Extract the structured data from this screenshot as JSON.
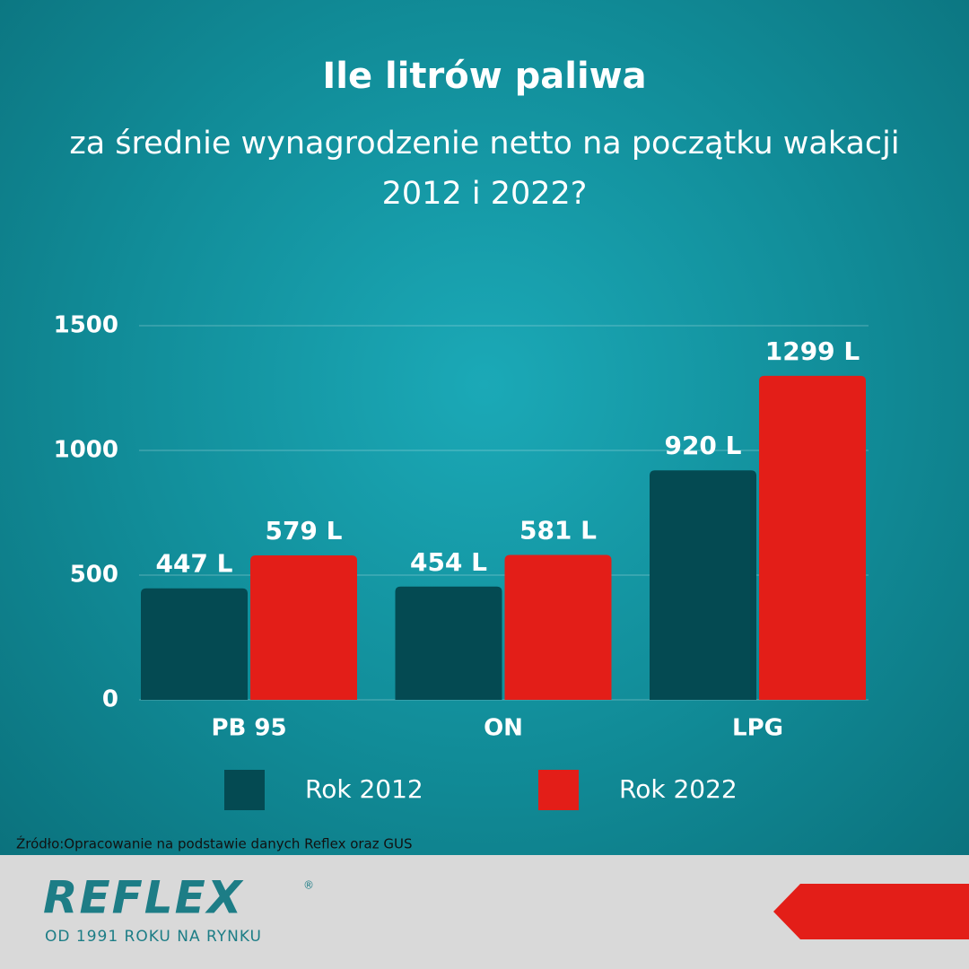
{
  "chart_data": {
    "type": "bar",
    "title": "Ile litrów paliwa",
    "subtitle": "za średnie wynagrodzenie netto na początku wakacji 2012 i 2022?",
    "categories": [
      "PB 95",
      "ON",
      "LPG"
    ],
    "series": [
      {
        "name": "Rok 2012",
        "color": "#044a52",
        "values": [
          447,
          454,
          920
        ],
        "value_labels": [
          "447 L",
          "454 L",
          "920 L"
        ]
      },
      {
        "name": "Rok 2022",
        "color": "#e31e18",
        "values": [
          579,
          581,
          1299
        ],
        "value_labels": [
          "579 L",
          "581 L",
          "1299 L"
        ]
      }
    ],
    "ylim": [
      0,
      1500
    ],
    "yticks": [
      0,
      500,
      1000,
      1500
    ],
    "grid": true
  },
  "source": "Źródło:Opracowanie na podstawie danych Reflex oraz GUS",
  "footer": {
    "logo": "REFLEX",
    "registered": "®",
    "tagline": "OD 1991 ROKU NA RYNKU"
  }
}
